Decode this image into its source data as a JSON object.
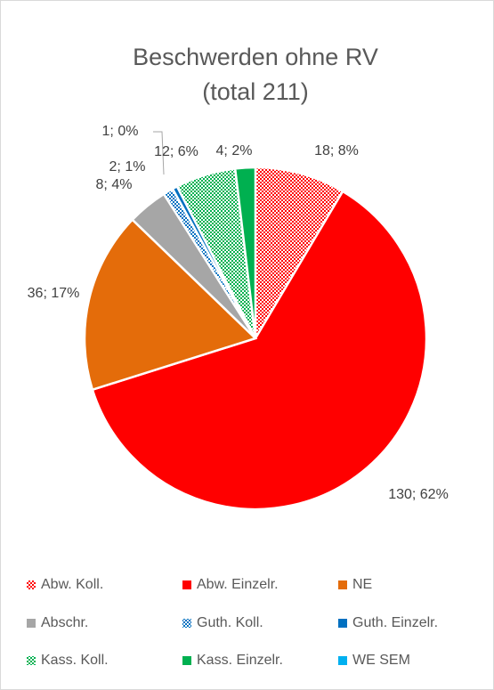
{
  "chart_data": {
    "type": "pie",
    "title": "Beschwerden ohne RV",
    "subtitle": "(total 211)",
    "categories": [
      "Abw. Koll.",
      "Abw. Einzelr.",
      "NE",
      "Abschr.",
      "Guth. Koll.",
      "Guth. Einzelr.",
      "Kass. Koll.",
      "Kass. Einzelr.",
      "WE SEM"
    ],
    "values": [
      18,
      130,
      36,
      8,
      2,
      1,
      12,
      4,
      0
    ],
    "value_labels": [
      "18; 8%",
      "130; 62%",
      "36; 17%",
      "8; 4%",
      "2; 1%",
      "1; 0%",
      "12; 6%",
      "4; 2%",
      null
    ],
    "colors": [
      "#ff0000",
      "#ff0000",
      "#e46c0a",
      "#a6a6a6",
      "#0070c0",
      "#0070c0",
      "#00b050",
      "#00b050",
      "#00b0f0"
    ],
    "hatched": [
      true,
      false,
      false,
      false,
      true,
      false,
      true,
      false,
      false
    ],
    "legend": "bottom"
  }
}
